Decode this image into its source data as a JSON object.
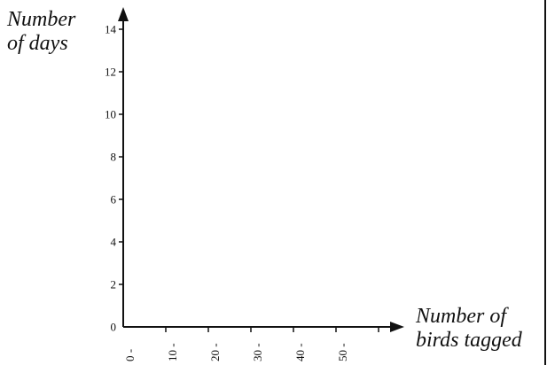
{
  "chart_data": {
    "type": "bar",
    "title": "",
    "ylabel": [
      "Number",
      "of days"
    ],
    "xlabel": [
      "Number of",
      "birds tagged"
    ],
    "x_ticks": [
      "0 -",
      "10 -",
      "20 -",
      "30 -",
      "40 -",
      "50 -"
    ],
    "y_ticks": [
      "0",
      "2",
      "4",
      "6",
      "8",
      "10",
      "12",
      "14"
    ],
    "ylim": [
      0,
      14
    ],
    "categories": [],
    "values": [],
    "grid": false
  }
}
